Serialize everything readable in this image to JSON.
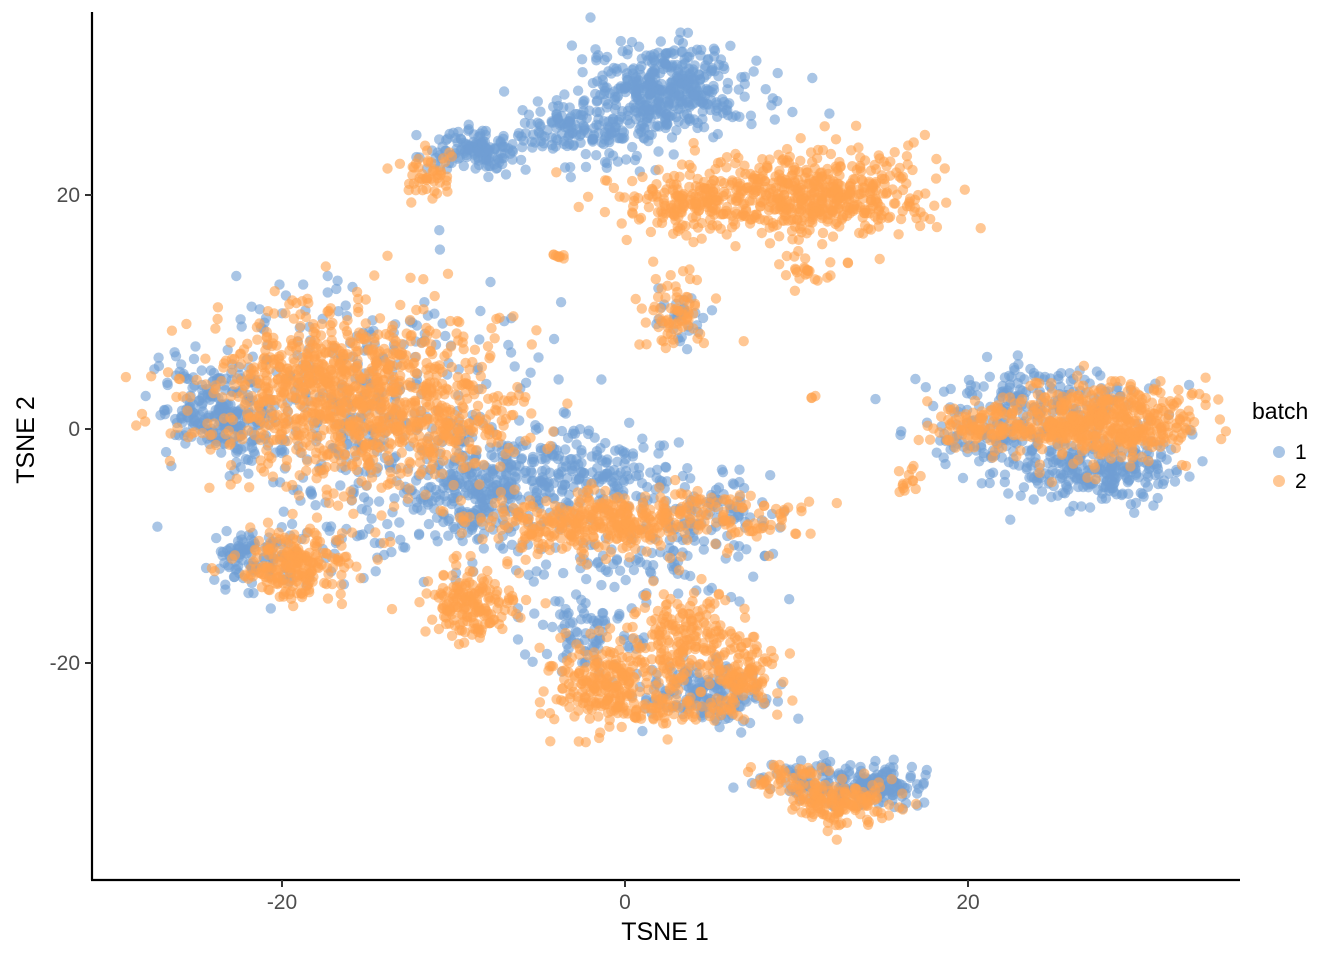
{
  "chart_data": {
    "type": "scatter",
    "title": "",
    "xlabel": "TSNE 1",
    "ylabel": "TSNE 2",
    "xlim": [
      -31,
      36
    ],
    "ylim": [
      -38,
      36
    ],
    "x_ticks": [
      -20,
      0,
      20
    ],
    "y_ticks": [
      -20,
      0,
      20
    ],
    "grid": false,
    "legend": {
      "title": "batch",
      "placement": "right",
      "entries": [
        {
          "label": "1",
          "color": "#6f9fd4"
        },
        {
          "label": "2",
          "color": "#ffa24c"
        }
      ]
    },
    "point_alpha": 0.6,
    "series": [
      {
        "name": "1",
        "color": "#6f9fd4",
        "clusters": [
          {
            "cx": 2.5,
            "cy": 29.0,
            "sx": 2.3,
            "sy": 2.0,
            "n": 420
          },
          {
            "cx": -2.5,
            "cy": 25.5,
            "sx": 2.0,
            "sy": 1.5,
            "n": 170
          },
          {
            "cx": -8.5,
            "cy": 23.8,
            "sx": 1.5,
            "sy": 0.9,
            "n": 140
          },
          {
            "cx": -23.5,
            "cy": 1.2,
            "sx": 1.7,
            "sy": 2.0,
            "n": 230
          },
          {
            "cx": -15.0,
            "cy": 2.5,
            "sx": 5.0,
            "sy": 4.8,
            "n": 350
          },
          {
            "cx": -8.0,
            "cy": -5.0,
            "sx": 1.8,
            "sy": 2.0,
            "n": 220
          },
          {
            "cx": -2.0,
            "cy": -3.5,
            "sx": 2.2,
            "sy": 1.8,
            "n": 170
          },
          {
            "cx": -11.0,
            "cy": -6.5,
            "sx": 4.5,
            "sy": 3.0,
            "n": 170
          },
          {
            "cx": -21.5,
            "cy": -11.0,
            "sx": 1.6,
            "sy": 1.3,
            "n": 110
          },
          {
            "cx": 4.5,
            "cy": -22.5,
            "sx": 2.0,
            "sy": 1.3,
            "n": 170
          },
          {
            "cx": -2.5,
            "cy": -17.5,
            "sx": 1.8,
            "sy": 2.2,
            "n": 90
          },
          {
            "cx": 27.5,
            "cy": -3.5,
            "sx": 2.5,
            "sy": 1.4,
            "n": 260
          },
          {
            "cx": 24.5,
            "cy": 2.5,
            "sx": 2.8,
            "sy": 1.4,
            "n": 170
          },
          {
            "cx": 21.5,
            "cy": -1.0,
            "sx": 2.0,
            "sy": 1.3,
            "n": 90
          },
          {
            "cx": 14.5,
            "cy": -30.5,
            "sx": 1.5,
            "sy": 0.9,
            "n": 150
          },
          {
            "cx": 10.5,
            "cy": -30.0,
            "sx": 1.6,
            "sy": 0.9,
            "n": 60
          },
          {
            "cx": 3.0,
            "cy": 9.5,
            "sx": 0.8,
            "sy": 1.5,
            "n": 30
          },
          {
            "cx": 5.5,
            "cy": -7.0,
            "sx": 2.2,
            "sy": 1.6,
            "n": 90
          },
          {
            "cx": 1.5,
            "cy": -11.5,
            "sx": 2.8,
            "sy": 2.0,
            "n": 90
          }
        ]
      },
      {
        "name": "2",
        "color": "#ffa24c",
        "clusters": [
          {
            "cx": 10.5,
            "cy": 20.0,
            "sx": 3.5,
            "sy": 1.8,
            "n": 520
          },
          {
            "cx": 4.0,
            "cy": 19.3,
            "sx": 2.3,
            "sy": 1.3,
            "n": 170
          },
          {
            "cx": -11.5,
            "cy": 22.0,
            "sx": 0.8,
            "sy": 1.2,
            "n": 50
          },
          {
            "cx": 3.0,
            "cy": 10.0,
            "sx": 0.9,
            "sy": 1.8,
            "n": 70
          },
          {
            "cx": -3.8,
            "cy": 14.8,
            "sx": 0.25,
            "sy": 0.15,
            "n": 8
          },
          {
            "cx": 11.0,
            "cy": 13.3,
            "sx": 1.2,
            "sy": 0.8,
            "n": 25
          },
          {
            "cx": -16.5,
            "cy": 2.8,
            "sx": 4.0,
            "sy": 3.8,
            "n": 950
          },
          {
            "cx": -10.5,
            "cy": 0.5,
            "sx": 2.5,
            "sy": 2.3,
            "n": 160
          },
          {
            "cx": -19.0,
            "cy": -11.5,
            "sx": 1.6,
            "sy": 1.6,
            "n": 220
          },
          {
            "cx": -9.0,
            "cy": -15.0,
            "sx": 1.4,
            "sy": 1.4,
            "n": 170
          },
          {
            "cx": -2.5,
            "cy": -8.0,
            "sx": 3.0,
            "sy": 1.3,
            "n": 300
          },
          {
            "cx": 4.0,
            "cy": -7.5,
            "sx": 3.5,
            "sy": 1.3,
            "n": 150
          },
          {
            "cx": 3.0,
            "cy": -18.0,
            "sx": 1.8,
            "sy": 2.0,
            "n": 210
          },
          {
            "cx": 7.0,
            "cy": -21.0,
            "sx": 1.0,
            "sy": 1.5,
            "n": 110
          },
          {
            "cx": -1.5,
            "cy": -21.5,
            "sx": 1.5,
            "sy": 1.7,
            "n": 190
          },
          {
            "cx": 2.0,
            "cy": -24.0,
            "sx": 2.5,
            "sy": 0.8,
            "n": 90
          },
          {
            "cx": 27.5,
            "cy": 0.5,
            "sx": 3.0,
            "sy": 1.6,
            "n": 520
          },
          {
            "cx": 20.5,
            "cy": 0.0,
            "sx": 1.5,
            "sy": 0.9,
            "n": 90
          },
          {
            "cx": 16.5,
            "cy": -4.5,
            "sx": 0.35,
            "sy": 0.6,
            "n": 14
          },
          {
            "cx": 12.5,
            "cy": -32.0,
            "sx": 1.5,
            "sy": 0.9,
            "n": 150
          },
          {
            "cx": 9.5,
            "cy": -30.0,
            "sx": 1.1,
            "sy": 0.7,
            "n": 50
          },
          {
            "cx": 11.0,
            "cy": 2.8,
            "sx": 0.1,
            "sy": 0.1,
            "n": 3
          }
        ],
        "outliers": [
          [
            -28.5,
            0.3
          ]
        ]
      }
    ]
  }
}
